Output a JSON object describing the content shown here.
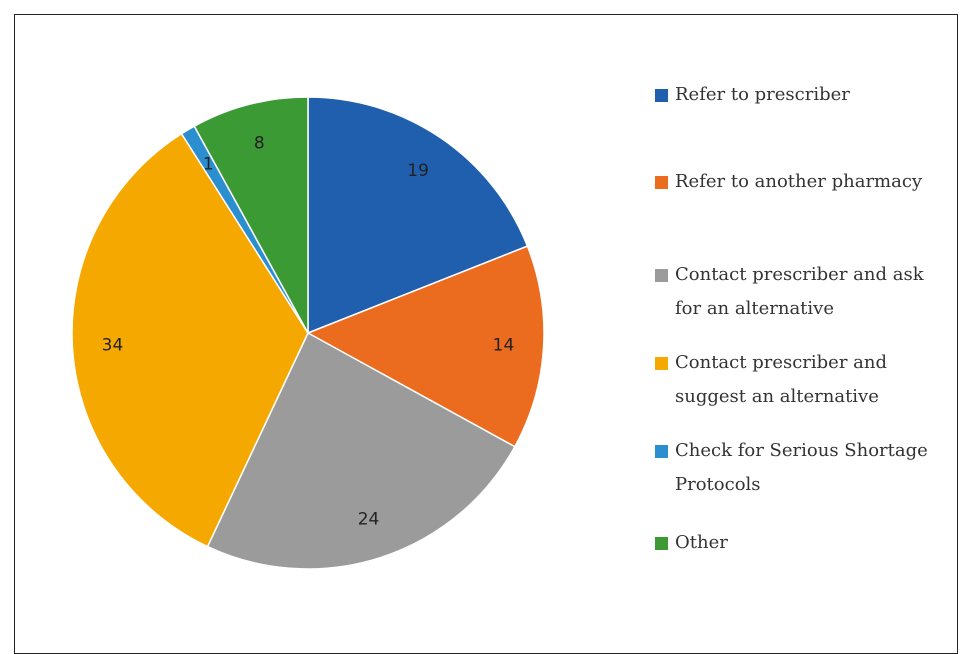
{
  "chart_data": {
    "type": "pie",
    "categories": [
      "Refer to prescriber",
      "Refer to another pharmacy",
      "Contact prescriber and ask for an alternative",
      "Contact prescriber and suggest an alternative",
      "Check for Serious Shortage Protocols",
      "Other"
    ],
    "values": [
      19,
      14,
      24,
      34,
      1,
      8
    ],
    "colors": [
      "#1f5fad",
      "#ec6c1f",
      "#9b9b9b",
      "#f5a800",
      "#2b8fcf",
      "#3c9a35"
    ],
    "legend": "right"
  }
}
